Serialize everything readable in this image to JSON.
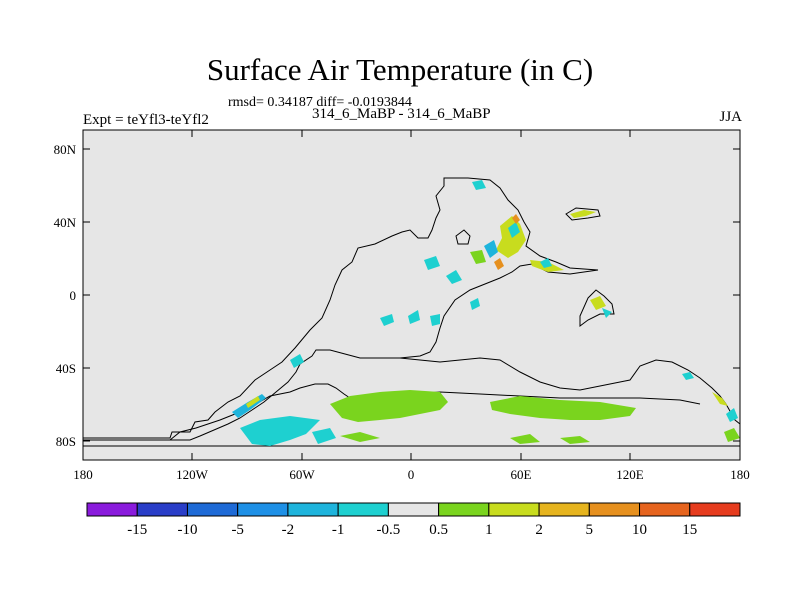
{
  "title": "Surface Air Temperature (in C)",
  "stats": "rmsd= 0.34187 diff= -0.0193844",
  "expt": "Expt = teYfl3-teYfl2",
  "case": "314_6_MaBP - 314_6_MaBP",
  "season": "JJA",
  "colors": {
    "land": "#e6e6e6",
    "coast": "#000000"
  },
  "map": {
    "lat_labels": [
      "80N",
      "40N",
      "0",
      "40S",
      "80S"
    ],
    "lon_labels": [
      "180",
      "120W",
      "60W",
      "0",
      "60E",
      "120E",
      "180"
    ]
  },
  "colorbar": {
    "colors": [
      "#8a1bdc",
      "#2a3ec8",
      "#1e6ad6",
      "#1e90e6",
      "#1eb4dc",
      "#1ed0d0",
      "#e6e6e6",
      "#7ad41e",
      "#c8dc1e",
      "#e6b41e",
      "#e6901e",
      "#e6641e",
      "#e63c1e"
    ],
    "labels": [
      "-15",
      "-10",
      "-5",
      "-2",
      "-1",
      "-0.5",
      "0.5",
      "1",
      "2",
      "5",
      "10",
      "15"
    ]
  }
}
